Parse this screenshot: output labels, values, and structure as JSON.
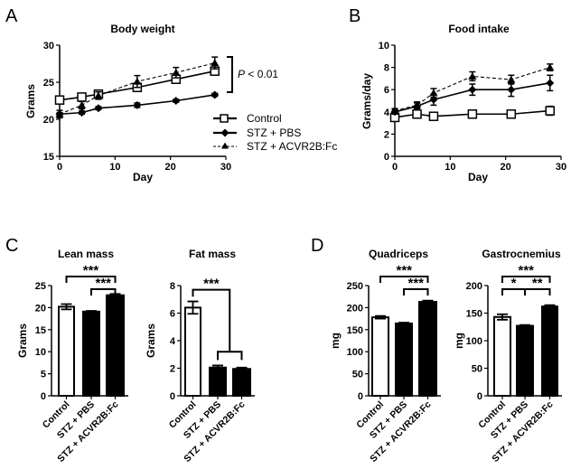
{
  "chart_data": [
    {
      "panel": "A",
      "type": "line",
      "title": "Body weight",
      "xlabel": "Day",
      "ylabel": "Grams",
      "xlim": [
        0,
        30
      ],
      "ylim": [
        15,
        30
      ],
      "xticks": [
        0,
        10,
        20,
        30
      ],
      "yticks": [
        15,
        20,
        25,
        30
      ],
      "x": [
        0,
        4,
        7,
        14,
        21,
        28
      ],
      "legend_position": "right",
      "series": [
        {
          "name": "Control",
          "marker": "square-open",
          "line": "solid",
          "values": [
            22.6,
            23.0,
            23.4,
            24.3,
            25.4,
            26.5
          ],
          "errors": [
            0.3,
            0.3,
            0.5,
            0.5,
            0.4,
            0.5
          ]
        },
        {
          "name": "STZ + PBS",
          "marker": "diamond-filled",
          "line": "solid",
          "values": [
            20.7,
            20.9,
            21.5,
            21.9,
            22.5,
            23.3
          ],
          "errors": [
            0.2,
            0.2,
            0.2,
            0.3,
            0.2,
            0.2
          ]
        },
        {
          "name": "STZ + ACVR2B:Fc",
          "marker": "triangle-filled",
          "line": "dashed",
          "values": [
            20.7,
            21.9,
            23.2,
            25.1,
            26.3,
            27.6
          ],
          "errors": [
            0.5,
            0.5,
            0.5,
            0.8,
            0.7,
            0.8
          ]
        }
      ],
      "annotation": {
        "prefix": "P",
        "text": " < 0.01"
      }
    },
    {
      "panel": "B",
      "type": "line",
      "title": "Food intake",
      "xlabel": "Day",
      "ylabel": "Grams/day",
      "xlim": [
        0,
        30
      ],
      "ylim": [
        0,
        10
      ],
      "xticks": [
        0,
        10,
        20,
        30
      ],
      "yticks": [
        0,
        2,
        4,
        6,
        8,
        10
      ],
      "x": [
        0,
        4,
        7,
        14,
        21,
        28
      ],
      "series": [
        {
          "name": "Control",
          "marker": "square-open",
          "line": "solid",
          "values": [
            3.5,
            3.8,
            3.6,
            3.8,
            3.8,
            4.1
          ],
          "errors": [
            0.1,
            0.1,
            0.1,
            0.1,
            0.1,
            0.4
          ]
        },
        {
          "name": "STZ + PBS",
          "marker": "diamond-filled",
          "line": "solid",
          "values": [
            4.0,
            4.5,
            5.1,
            6.0,
            6.0,
            6.6
          ],
          "errors": [
            0.2,
            0.3,
            0.5,
            0.5,
            0.6,
            0.7
          ]
        },
        {
          "name": "STZ + ACVR2B:Fc",
          "marker": "triangle-filled",
          "line": "dashed",
          "values": [
            4.1,
            4.6,
            5.7,
            7.2,
            6.9,
            8.0
          ],
          "errors": [
            0.2,
            0.3,
            0.4,
            0.4,
            0.4,
            0.3
          ]
        }
      ]
    },
    {
      "panel": "C",
      "type": "bar",
      "title": "Lean mass",
      "ylabel": "Grams",
      "ylim": [
        0,
        25
      ],
      "yticks": [
        0,
        5,
        10,
        15,
        20,
        25
      ],
      "categories": [
        "Control",
        "STZ + PBS",
        "STZ + ACVR2B:Fc"
      ],
      "values": [
        20.2,
        19.1,
        22.8
      ],
      "errors": [
        0.6,
        0.15,
        0.3
      ],
      "fills": [
        "#ffffff",
        "#000000",
        "#000000"
      ],
      "significance": [
        {
          "from": 0,
          "to": 2,
          "label": "***",
          "level": 2
        },
        {
          "from": 1,
          "to": 2,
          "label": "***",
          "level": 1
        }
      ]
    },
    {
      "panel": "C2",
      "type": "bar",
      "title": "Fat mass",
      "ylabel": "Grams",
      "ylim": [
        0,
        8
      ],
      "yticks": [
        0,
        2,
        4,
        6,
        8
      ],
      "categories": [
        "Control",
        "STZ + PBS",
        "STZ + ACVR2B:Fc"
      ],
      "values": [
        6.4,
        2.05,
        1.95
      ],
      "errors": [
        0.45,
        0.15,
        0.1
      ],
      "fills": [
        "#ffffff",
        "#000000",
        "#000000"
      ],
      "significance": [
        {
          "from": 0,
          "to": "1-2",
          "label": "***"
        }
      ]
    },
    {
      "panel": "D",
      "type": "bar",
      "title": "Quadriceps",
      "ylabel": "mg",
      "ylim": [
        0,
        250
      ],
      "yticks": [
        0,
        50,
        100,
        150,
        200,
        250
      ],
      "categories": [
        "Control",
        "STZ + PBS",
        "STZ + ACVR2B:Fc"
      ],
      "values": [
        178,
        164,
        213
      ],
      "errors": [
        3,
        2,
        3
      ],
      "fills": [
        "#ffffff",
        "#000000",
        "#000000"
      ],
      "significance": [
        {
          "from": 0,
          "to": 2,
          "label": "***",
          "level": 2
        },
        {
          "from": 1,
          "to": 2,
          "label": "***",
          "level": 1
        }
      ]
    },
    {
      "panel": "D2",
      "type": "bar",
      "title": "Gastrocnemius",
      "ylabel": "mg",
      "ylim": [
        0,
        200
      ],
      "yticks": [
        0,
        50,
        100,
        150,
        200
      ],
      "categories": [
        "Control",
        "STZ + PBS",
        "STZ + ACVR2B:Fc"
      ],
      "values": [
        143,
        127,
        162
      ],
      "errors": [
        5,
        1.5,
        2.5
      ],
      "fills": [
        "#ffffff",
        "#000000",
        "#000000"
      ],
      "significance": [
        {
          "from": 0,
          "to": 2,
          "label": "***",
          "level": 2
        },
        {
          "from": 0,
          "to": 1,
          "label": "*",
          "level": 1
        },
        {
          "from": 1,
          "to": 2,
          "label": "**",
          "level": 1
        }
      ]
    }
  ],
  "panel_letters": [
    "A",
    "B",
    "C",
    "D"
  ]
}
